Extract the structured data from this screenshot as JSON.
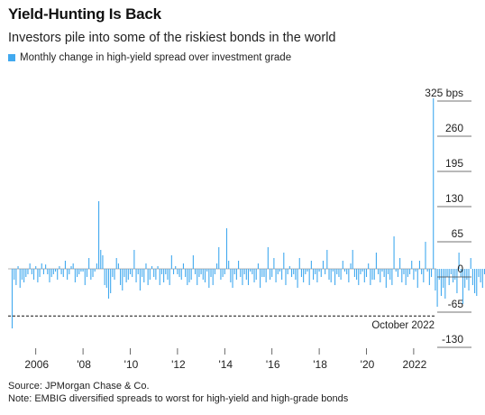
{
  "title": "Yield-Hunting Is Back",
  "subtitle": "Investors pile into some of the riskiest bonds in the world",
  "legend": {
    "label": "Monthly change in high-yield spread over investment grade",
    "color": "#41a9ef"
  },
  "source": "Source: JPMorgan Chase & Co.",
  "note": "Note: EMBIG diversified spreads to worst for high-yield and high-grade bonds",
  "chart_data": {
    "type": "bar",
    "series": [
      {
        "name": "Monthly change in high-yield spread over investment grade",
        "start": "2005-01",
        "values": [
          -110,
          -20,
          -30,
          5,
          -35,
          -20,
          -25,
          -15,
          -10,
          10,
          -10,
          -20,
          5,
          -25,
          -15,
          10,
          -10,
          8,
          -10,
          -25,
          -15,
          -10,
          -5,
          -20,
          5,
          -10,
          -15,
          15,
          -20,
          -10,
          5,
          10,
          -25,
          -15,
          -10,
          -5,
          -5,
          -30,
          -15,
          20,
          -20,
          -15,
          -5,
          10,
          125,
          35,
          25,
          -30,
          -35,
          -55,
          -45,
          -15,
          -20,
          20,
          10,
          -30,
          -40,
          -15,
          -25,
          -20,
          -10,
          -15,
          35,
          -25,
          -10,
          -40,
          -15,
          -25,
          10,
          -30,
          -20,
          5,
          -15,
          -20,
          5,
          -30,
          -10,
          -25,
          -10,
          -20,
          -30,
          25,
          -10,
          5,
          -10,
          -15,
          -20,
          10,
          -15,
          -30,
          -25,
          -20,
          25,
          -10,
          -30,
          -15,
          -10,
          -20,
          -25,
          -5,
          -35,
          -15,
          -30,
          -10,
          10,
          40,
          -20,
          -15,
          -10,
          75,
          15,
          -25,
          -35,
          -10,
          -20,
          15,
          -15,
          -30,
          -10,
          -20,
          -30,
          -5,
          -10,
          -25,
          -20,
          10,
          -35,
          -15,
          -15,
          -25,
          40,
          -20,
          -15,
          20,
          -25,
          -10,
          -5,
          -20,
          30,
          -30,
          -10,
          5,
          -15,
          -10,
          -20,
          -35,
          20,
          -15,
          -25,
          -10,
          -5,
          -30,
          15,
          -20,
          -10,
          -25,
          -5,
          -15,
          15,
          -10,
          35,
          -20,
          -25,
          -5,
          -30,
          -10,
          -15,
          -20,
          15,
          -5,
          -10,
          -25,
          10,
          35,
          -15,
          -20,
          -30,
          -10,
          -5,
          -25,
          -15,
          10,
          -30,
          -20,
          -20,
          30,
          -10,
          -25,
          -5,
          -15,
          -35,
          -10,
          -20,
          -30,
          60,
          -5,
          -15,
          20,
          -25,
          -10,
          -30,
          -15,
          -10,
          15,
          -20,
          -5,
          -35,
          15,
          -10,
          -25,
          50,
          -5,
          -30,
          -15,
          315,
          -40,
          -70,
          -20,
          -50,
          -35,
          -55,
          -15,
          -30,
          -10,
          -25,
          -20,
          -45,
          30,
          -15,
          -65,
          -35,
          -20,
          -40,
          20,
          -30,
          -45,
          -50,
          -15,
          -25,
          -35,
          -10,
          -20,
          10,
          -30,
          -40,
          -15,
          -55,
          10,
          30,
          -20,
          -60,
          -15,
          50,
          -25,
          -15,
          45,
          35,
          20,
          20,
          -30,
          155,
          40,
          5,
          -35,
          -60,
          -20,
          60,
          -70,
          -40
        ]
      }
    ],
    "ylim": [
      -140,
      330
    ],
    "y_ticks": [
      "325 bps",
      "260",
      "195",
      "130",
      "65",
      "0",
      "-65",
      "-130"
    ],
    "y_tick_values": [
      325,
      260,
      195,
      130,
      65,
      0,
      -65,
      -130
    ],
    "x_ticks": [
      "2006",
      "'08",
      "'10",
      "'12",
      "'14",
      "'16",
      "'18",
      "'20",
      "2022"
    ],
    "x_tick_dates": [
      "2006-01",
      "2008-01",
      "2010-01",
      "2012-01",
      "2014-01",
      "2016-01",
      "2018-01",
      "2020-01",
      "2022-01"
    ],
    "reference_line": {
      "value": -87,
      "label": "October 2022",
      "style": "dashed"
    },
    "grid": false,
    "bar_color": "#41a9ef"
  }
}
